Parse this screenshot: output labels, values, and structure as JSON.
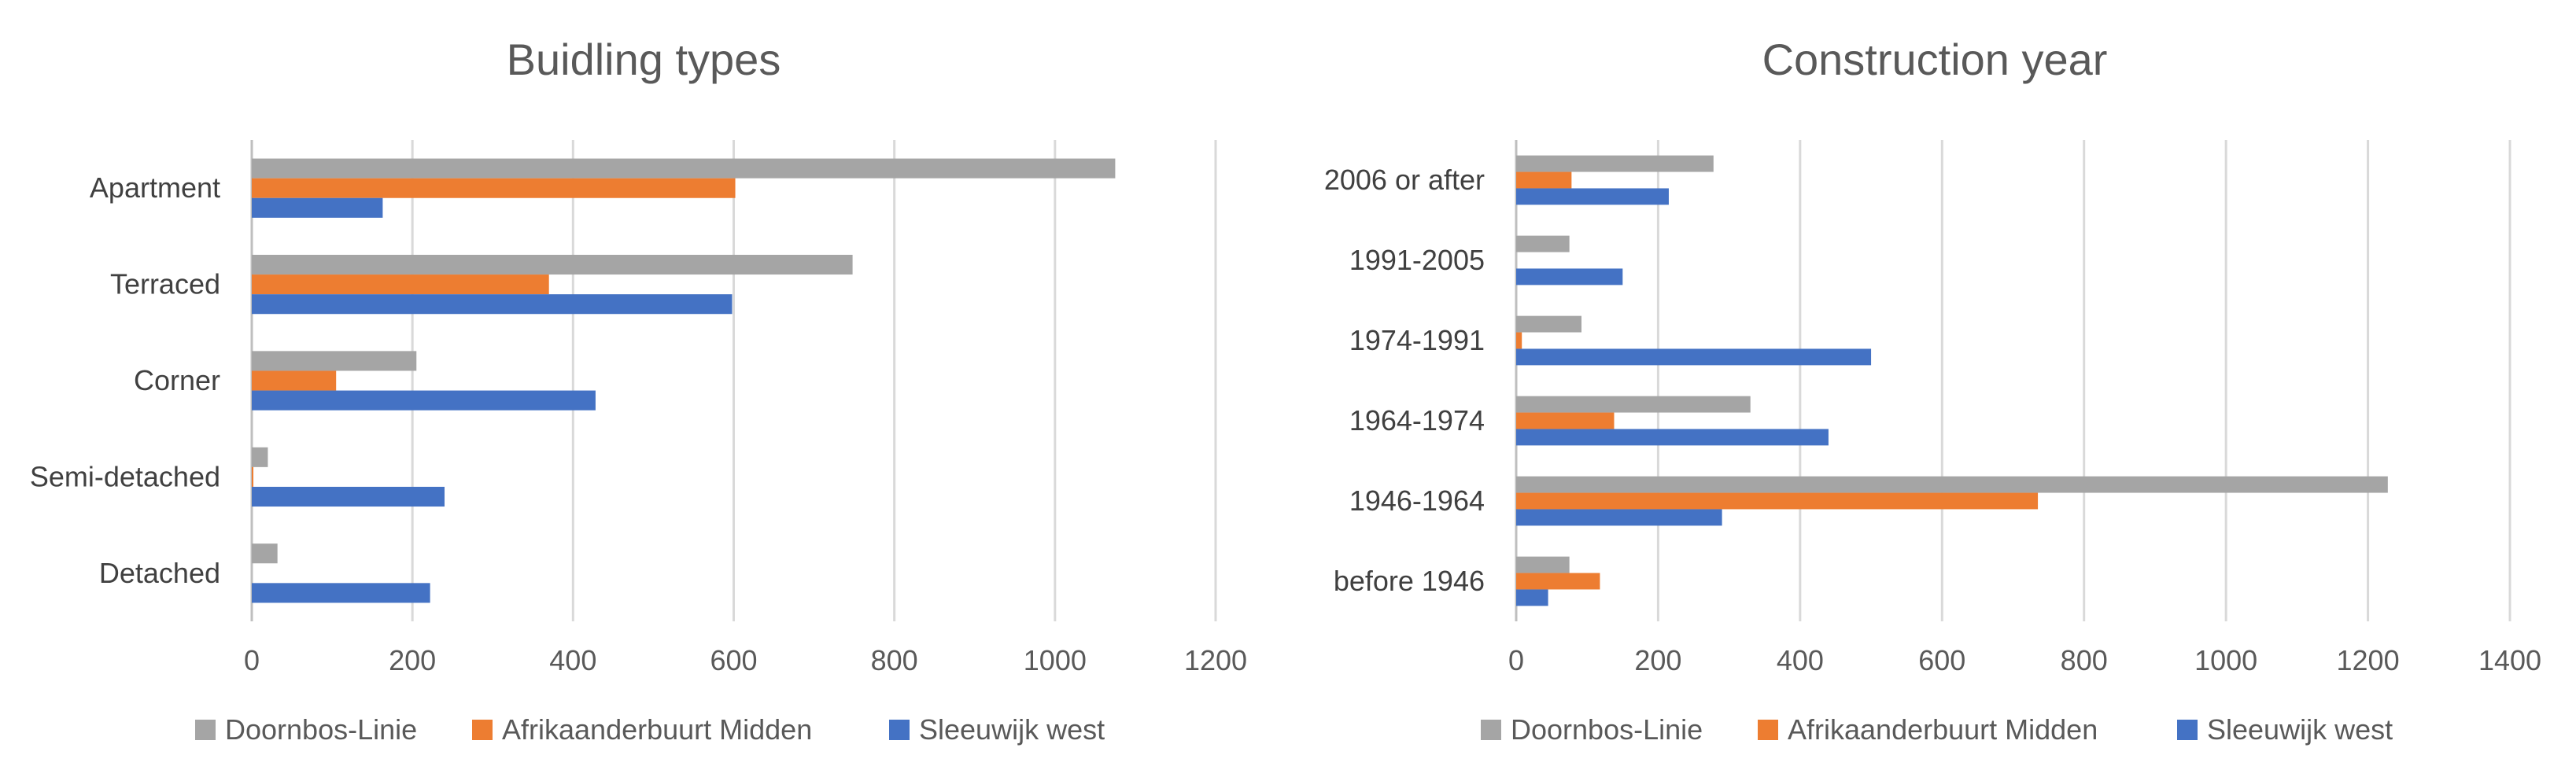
{
  "chart_data": [
    {
      "type": "bar",
      "orientation": "horizontal",
      "title": "Buidling types",
      "categories": [
        "Apartment",
        "Terraced",
        "Corner",
        "Semi-detached",
        "Detached"
      ],
      "series": [
        {
          "name": "Doornbos-Linie",
          "color": "#a5a5a5",
          "values": [
            1075,
            748,
            205,
            20,
            32
          ]
        },
        {
          "name": "Afrikaanderbuurt Midden",
          "color": "#ed7d31",
          "values": [
            602,
            370,
            105,
            2,
            0
          ]
        },
        {
          "name": "Sleeuwijk west",
          "color": "#4472c4",
          "values": [
            163,
            598,
            428,
            240,
            222
          ]
        }
      ],
      "xlim": [
        0,
        1200
      ],
      "xticks": [
        0,
        200,
        400,
        600,
        800,
        1000,
        1200
      ],
      "grid": true,
      "legend_position": "bottom"
    },
    {
      "type": "bar",
      "orientation": "horizontal",
      "title": "Construction year",
      "categories": [
        "2006 or after",
        "1991-2005",
        "1974-1991",
        "1964-1974",
        "1946-1964",
        "before 1946"
      ],
      "series": [
        {
          "name": "Doornbos-Linie",
          "color": "#a5a5a5",
          "values": [
            278,
            75,
            92,
            330,
            1228,
            75
          ]
        },
        {
          "name": "Afrikaanderbuurt Midden",
          "color": "#ed7d31",
          "values": [
            78,
            0,
            8,
            138,
            735,
            118
          ]
        },
        {
          "name": "Sleeuwijk west",
          "color": "#4472c4",
          "values": [
            215,
            150,
            500,
            440,
            290,
            45
          ]
        }
      ],
      "xlim": [
        0,
        1400
      ],
      "xticks": [
        0,
        200,
        400,
        600,
        800,
        1000,
        1200,
        1400
      ],
      "grid": true,
      "legend_position": "bottom"
    }
  ]
}
